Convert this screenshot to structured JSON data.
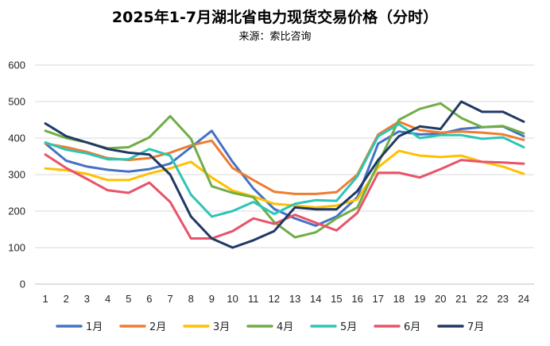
{
  "chart_data": {
    "type": "line",
    "title": "2025年1-7月湖北省电力现货交易价格（分时）",
    "subtitle": "来源：索比咨询",
    "xlabel": "",
    "ylabel": "",
    "ylim": [
      0,
      600
    ],
    "yticks": [
      0,
      100,
      200,
      300,
      400,
      500,
      600
    ],
    "grid": true,
    "legend_position": "bottom",
    "categories": [
      "1",
      "2",
      "3",
      "4",
      "5",
      "6",
      "7",
      "8",
      "9",
      "10",
      "11",
      "12",
      "13",
      "14",
      "15",
      "16",
      "17",
      "18",
      "19",
      "20",
      "21",
      "22",
      "23",
      "24"
    ],
    "series": [
      {
        "name": "1月",
        "color": "#4472C4",
        "values": [
          385,
          338,
          322,
          313,
          308,
          315,
          330,
          375,
          420,
          335,
          262,
          206,
          180,
          160,
          185,
          238,
          385,
          418,
          410,
          412,
          425,
          430,
          432,
          405
        ]
      },
      {
        "name": "2月",
        "color": "#ED7D31",
        "values": [
          385,
          375,
          362,
          345,
          340,
          345,
          360,
          380,
          393,
          318,
          285,
          253,
          247,
          247,
          252,
          300,
          410,
          445,
          422,
          415,
          418,
          415,
          410,
          395
        ]
      },
      {
        "name": "3月",
        "color": "#FFC000",
        "values": [
          317,
          312,
          302,
          285,
          285,
          303,
          317,
          335,
          292,
          256,
          240,
          220,
          215,
          210,
          215,
          232,
          320,
          365,
          352,
          348,
          352,
          335,
          322,
          302
        ]
      },
      {
        "name": "4月",
        "color": "#70AD47",
        "values": [
          420,
          400,
          388,
          372,
          375,
          402,
          460,
          398,
          268,
          250,
          238,
          170,
          128,
          142,
          180,
          210,
          330,
          450,
          480,
          495,
          455,
          430,
          433,
          413
        ]
      },
      {
        "name": "5月",
        "color": "#2EC4B6",
        "values": [
          388,
          368,
          358,
          342,
          342,
          370,
          352,
          245,
          185,
          200,
          225,
          192,
          220,
          230,
          228,
          295,
          405,
          438,
          400,
          408,
          408,
          398,
          402,
          375
        ]
      },
      {
        "name": "6月",
        "color": "#E8536A",
        "values": [
          355,
          318,
          288,
          257,
          250,
          278,
          225,
          125,
          125,
          145,
          180,
          165,
          190,
          168,
          147,
          195,
          305,
          305,
          292,
          315,
          340,
          335,
          333,
          330
        ]
      },
      {
        "name": "7月",
        "color": "#203864",
        "values": [
          440,
          405,
          388,
          370,
          360,
          355,
          300,
          185,
          125,
          100,
          120,
          145,
          210,
          205,
          205,
          255,
          340,
          405,
          432,
          425,
          500,
          472,
          472,
          445
        ]
      }
    ]
  }
}
